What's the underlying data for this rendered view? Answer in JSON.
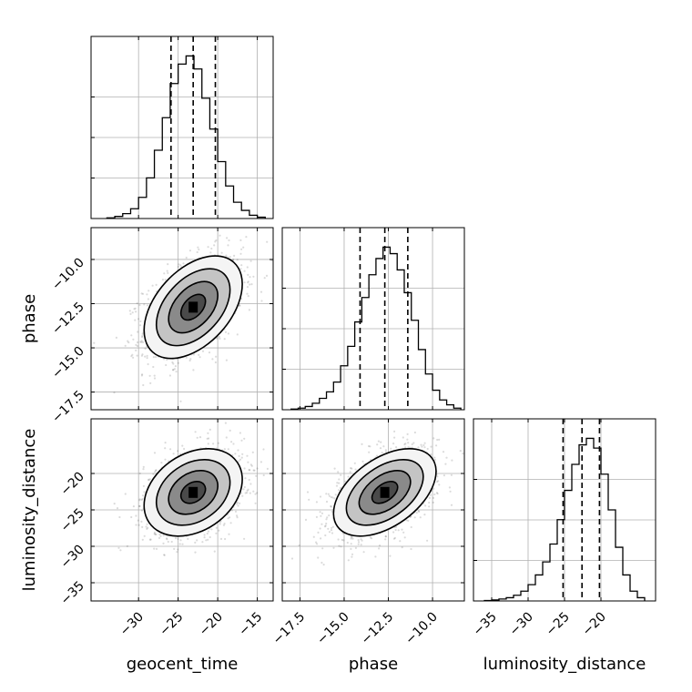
{
  "chart_data": {
    "type": "corner",
    "parameters": [
      "geocent_time",
      "phase",
      "luminosity_distance"
    ],
    "ranges": {
      "geocent_time": [
        -36,
        -13
      ],
      "phase": [
        -18.5,
        -8.2
      ],
      "luminosity_distance": [
        -37.5,
        -12.5
      ]
    },
    "ticks": {
      "geocent_time": [
        -30,
        -25,
        -20,
        -15
      ],
      "phase": [
        -17.5,
        -15.0,
        -12.5,
        -10.0
      ],
      "luminosity_distance": [
        -35,
        -30,
        -25,
        -20
      ]
    },
    "tick_labels": {
      "geocent_time": [
        "−30",
        "−25",
        "−20",
        "−15"
      ],
      "phase": [
        "−17.5",
        "−15.0",
        "−12.5",
        "−10.0"
      ],
      "luminosity_distance": [
        "−35",
        "−30",
        "−25",
        "−20"
      ]
    },
    "quantiles": {
      "geocent_time": [
        -25.9,
        -23.1,
        -20.3
      ],
      "phase": [
        -14.1,
        -12.7,
        -11.4
      ],
      "luminosity_distance": [
        -25.2,
        -22.6,
        -20.2
      ]
    },
    "histograms": {
      "geocent_time": {
        "edges": [
          -34,
          -33,
          -32,
          -31,
          -30,
          -29,
          -28,
          -27,
          -26,
          -25,
          -24,
          -23,
          -22,
          -21,
          -20,
          -19,
          -18,
          -17,
          -16,
          -15,
          -14
        ],
        "counts": [
          0.004,
          0.013,
          0.03,
          0.06,
          0.13,
          0.25,
          0.42,
          0.62,
          0.83,
          0.95,
          1.0,
          0.92,
          0.74,
          0.55,
          0.35,
          0.2,
          0.1,
          0.05,
          0.02,
          0.008
        ]
      },
      "phase": {
        "edges": [
          -18.0,
          -17.6,
          -17.2,
          -16.8,
          -16.4,
          -16.0,
          -15.6,
          -15.2,
          -14.8,
          -14.4,
          -14.0,
          -13.6,
          -13.2,
          -12.8,
          -12.4,
          -12.0,
          -11.6,
          -11.2,
          -10.8,
          -10.4,
          -10.0,
          -9.6,
          -9.2,
          -8.8,
          -8.4
        ],
        "counts": [
          0.004,
          0.01,
          0.02,
          0.04,
          0.07,
          0.11,
          0.17,
          0.27,
          0.39,
          0.54,
          0.69,
          0.83,
          0.93,
          1.0,
          0.96,
          0.86,
          0.72,
          0.55,
          0.37,
          0.22,
          0.12,
          0.06,
          0.03,
          0.01
        ]
      },
      "luminosity_distance": {
        "edges": [
          -36,
          -35,
          -34,
          -33,
          -32,
          -31,
          -30,
          -29,
          -28,
          -27,
          -26,
          -25,
          -24,
          -23,
          -22,
          -21,
          -20,
          -19,
          -18,
          -17,
          -16,
          -15,
          -14
        ],
        "counts": [
          0.003,
          0.006,
          0.012,
          0.02,
          0.035,
          0.06,
          0.1,
          0.16,
          0.24,
          0.35,
          0.5,
          0.68,
          0.84,
          0.96,
          1.0,
          0.94,
          0.78,
          0.56,
          0.33,
          0.16,
          0.06,
          0.02
        ]
      }
    },
    "pairs": [
      {
        "x": "geocent_time",
        "y": "phase",
        "center": [
          -23.1,
          -12.7
        ],
        "sigma": [
          3.1,
          1.45
        ],
        "rho": 0.45
      },
      {
        "x": "geocent_time",
        "y": "luminosity_distance",
        "center": [
          -23.1,
          -22.6
        ],
        "sigma": [
          3.1,
          3.0
        ],
        "rho": 0.3
      },
      {
        "x": "phase",
        "y": "luminosity_distance",
        "center": [
          -12.7,
          -22.6
        ],
        "sigma": [
          1.45,
          3.0
        ],
        "rho": 0.48
      }
    ],
    "contour_levels": [
      0.5,
      1.0,
      1.5,
      2.0
    ],
    "grid": true
  }
}
